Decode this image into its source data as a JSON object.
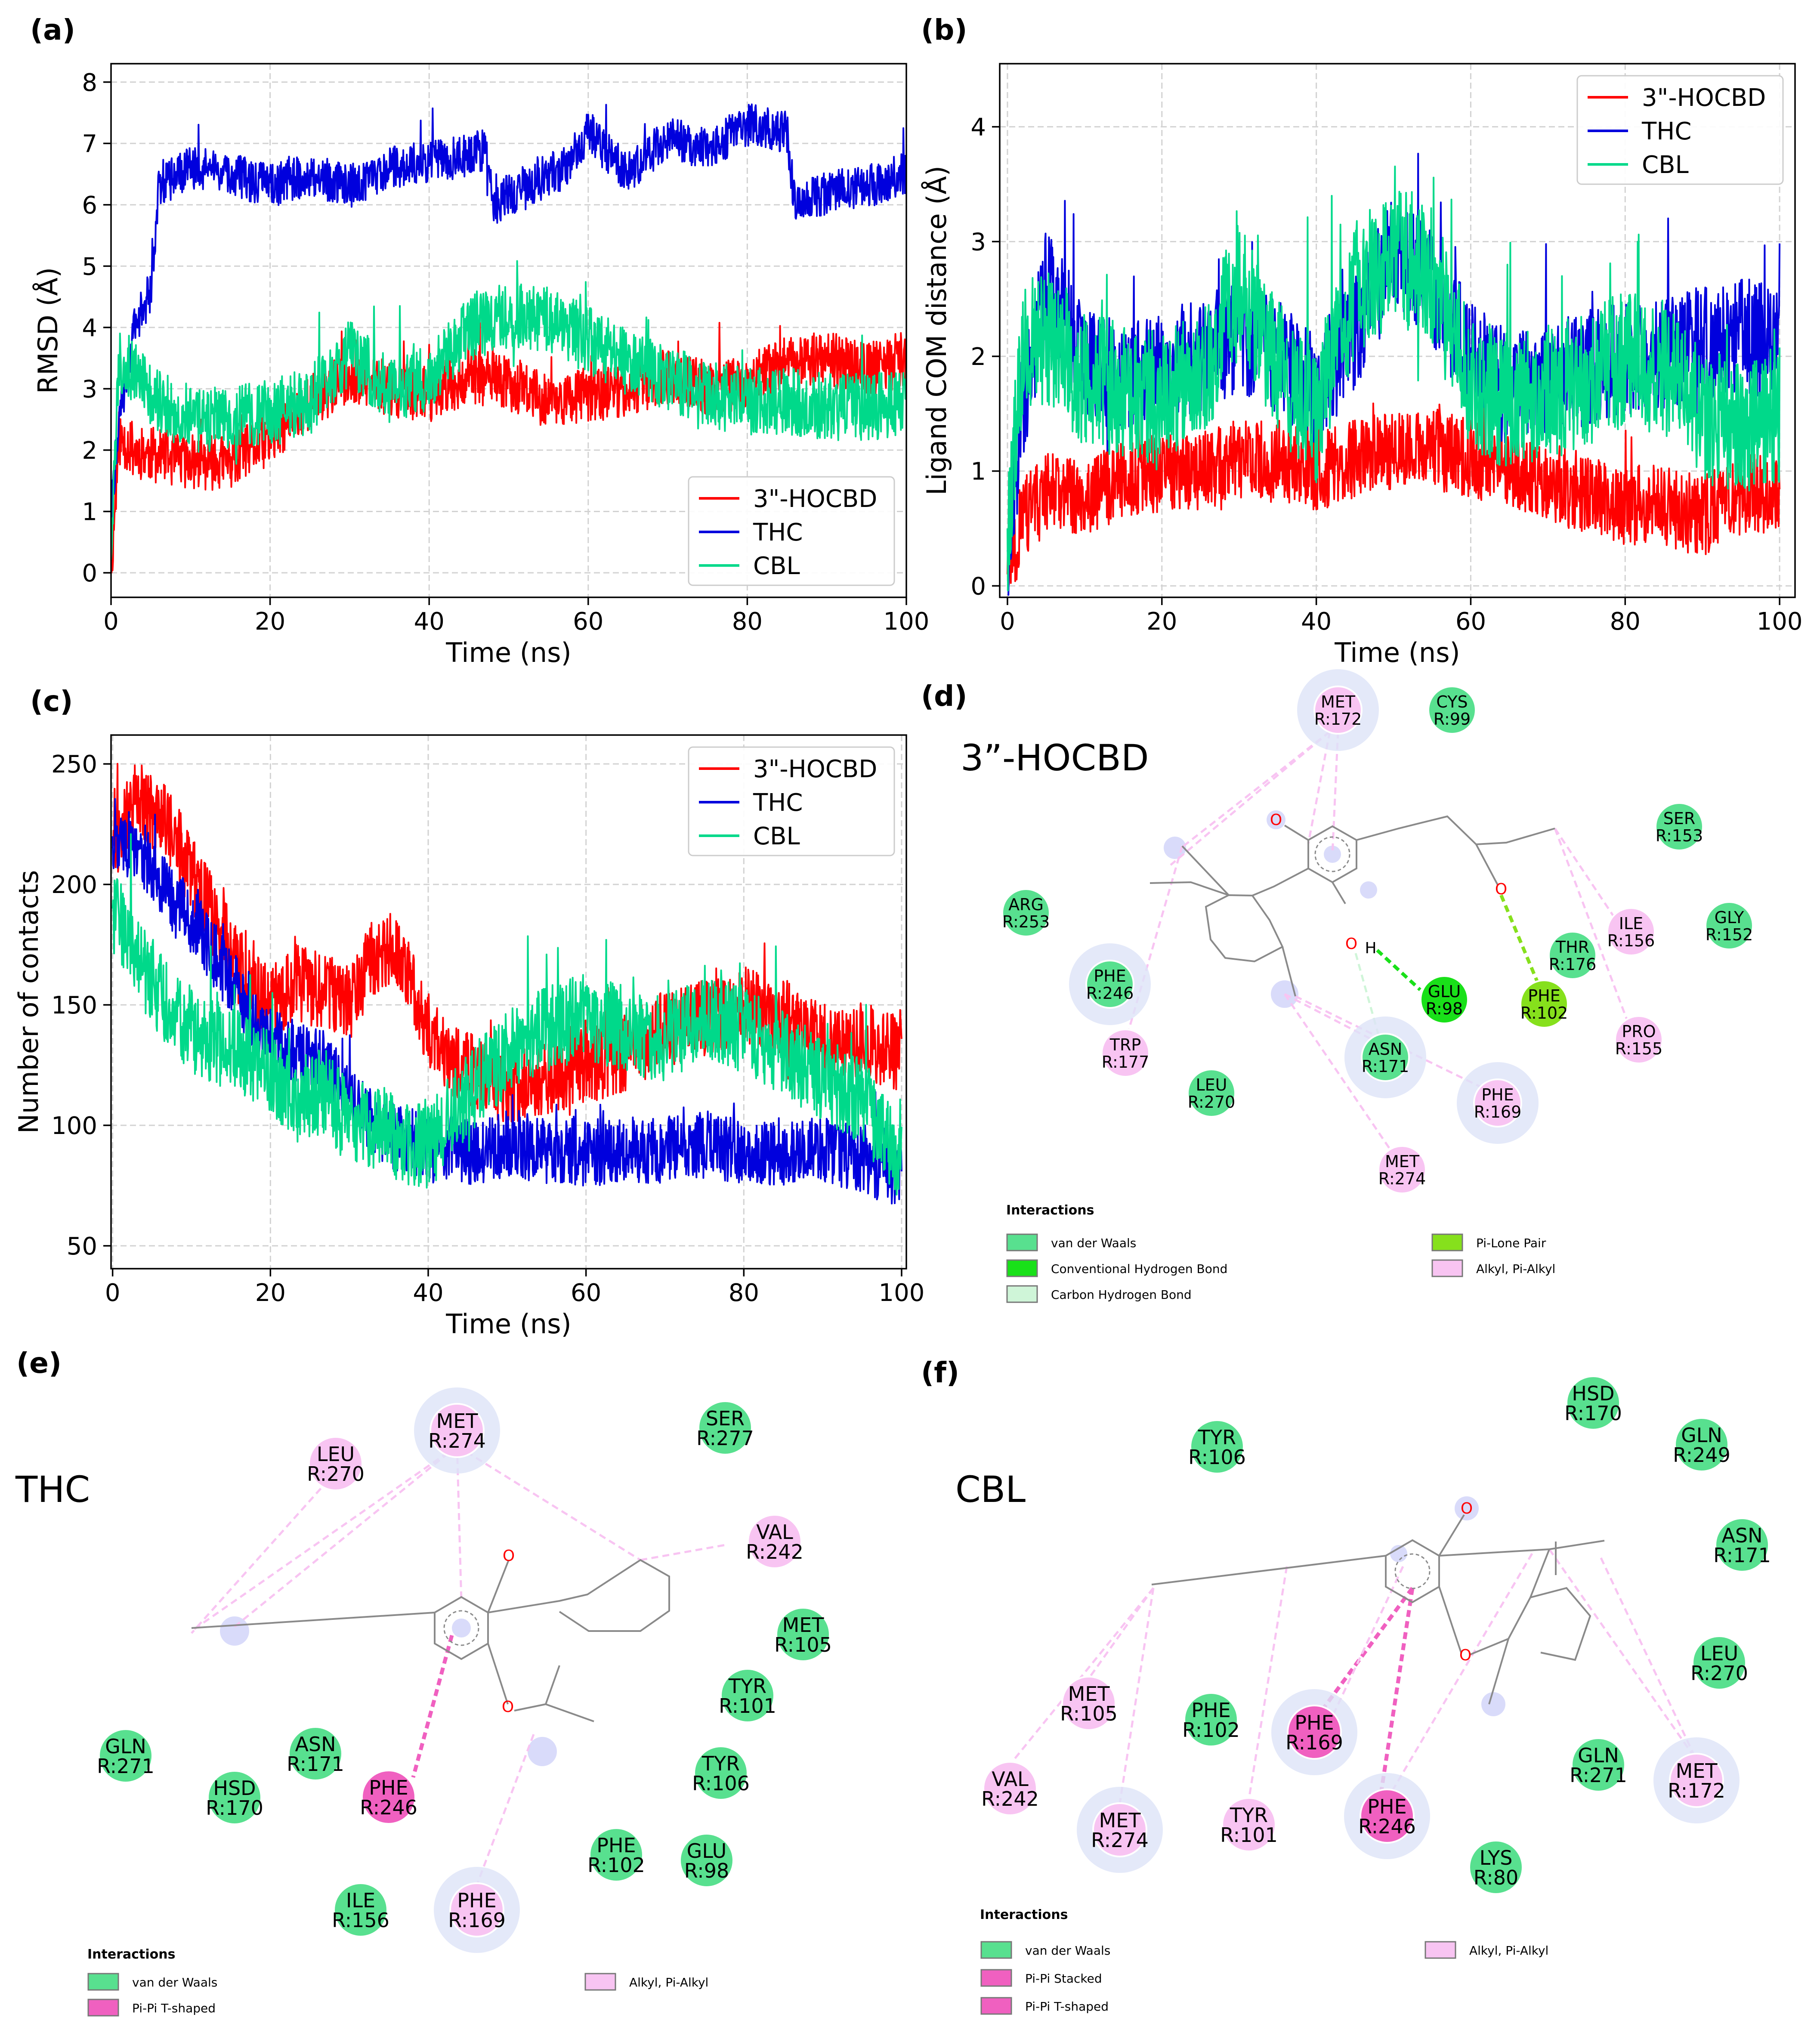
{
  "panels": {
    "a": {
      "label": "(a)"
    },
    "b": {
      "label": "(b)"
    },
    "c": {
      "label": "(c)"
    },
    "d": {
      "label": "(d)",
      "title": "3”-HOCBD"
    },
    "e": {
      "label": "(e)",
      "title": "THC"
    },
    "f": {
      "label": "(f)",
      "title": "CBL"
    }
  },
  "colors": {
    "hocbd": "#ff0000",
    "thc": "#0000dd",
    "cbl": "#00d98a",
    "vdw": "#58e08f",
    "conv_hbond": "#19e019",
    "carbon_hbond": "#cff5d8",
    "pi_lone": "#86e01c",
    "alkyl": "#f8c4f2",
    "pipi": "#f060c0"
  },
  "chart_data": [
    {
      "type": "line",
      "panel": "a",
      "xlabel": "Time (ns)",
      "ylabel": "RMSD (Å)",
      "xlim": [
        0,
        100
      ],
      "ylim": [
        -0.4,
        8.3
      ],
      "xticks": [
        0,
        20,
        40,
        60,
        80,
        100
      ],
      "yticks": [
        0,
        1,
        2,
        3,
        4,
        5,
        6,
        7,
        8
      ],
      "grid": true,
      "legend": "bottom-right",
      "series": [
        {
          "name": "3\"-HOCBD",
          "key": "hocbd",
          "noise": 0.45,
          "seed": 11,
          "x": [
            0,
            1,
            3,
            6,
            10,
            15,
            20,
            25,
            30,
            35,
            40,
            45,
            50,
            55,
            60,
            65,
            70,
            75,
            80,
            85,
            90,
            95,
            100
          ],
          "y": [
            0,
            2.2,
            2.0,
            1.9,
            1.8,
            1.8,
            2.2,
            2.8,
            3.2,
            3.0,
            2.9,
            3.2,
            3.1,
            2.8,
            2.9,
            3.0,
            3.2,
            3.0,
            3.1,
            3.4,
            3.5,
            3.3,
            3.5
          ]
        },
        {
          "name": "THC",
          "key": "thc",
          "noise": 0.35,
          "seed": 22,
          "x": [
            0,
            1,
            3,
            5,
            6,
            10,
            15,
            20,
            25,
            30,
            35,
            40,
            45,
            47,
            48,
            52,
            57,
            60,
            62,
            65,
            70,
            75,
            80,
            85,
            86,
            90,
            95,
            100
          ],
          "y": [
            1.0,
            2.5,
            4.0,
            4.6,
            6.3,
            6.6,
            6.5,
            6.3,
            6.5,
            6.3,
            6.6,
            6.7,
            6.8,
            6.9,
            6.0,
            6.3,
            6.6,
            7.2,
            6.9,
            6.5,
            7.1,
            6.9,
            7.3,
            7.2,
            6.0,
            6.2,
            6.3,
            6.5
          ]
        },
        {
          "name": "CBL",
          "key": "cbl",
          "noise": 0.55,
          "seed": 33,
          "x": [
            0,
            1,
            3,
            6,
            10,
            15,
            20,
            25,
            30,
            35,
            40,
            45,
            50,
            55,
            60,
            65,
            70,
            75,
            80,
            85,
            90,
            95,
            100
          ],
          "y": [
            0.2,
            3.5,
            3.3,
            2.8,
            2.5,
            2.5,
            2.6,
            2.8,
            3.6,
            3.0,
            3.2,
            4.0,
            4.2,
            4.1,
            3.8,
            3.4,
            3.2,
            2.9,
            2.8,
            2.8,
            2.7,
            2.7,
            2.8
          ]
        }
      ]
    },
    {
      "type": "line",
      "panel": "b",
      "xlabel": "Time (ns)",
      "ylabel": "Ligand COM distance (Å)",
      "xlim": [
        -1,
        102
      ],
      "ylim": [
        -0.1,
        4.55
      ],
      "xticks": [
        0,
        20,
        40,
        60,
        80,
        100
      ],
      "yticks": [
        0,
        1,
        2,
        3,
        4
      ],
      "grid": true,
      "legend": "top-right",
      "series": [
        {
          "name": "3\"-HOCBD",
          "key": "hocbd",
          "noise": 0.35,
          "seed": 44,
          "x": [
            0,
            2,
            5,
            10,
            15,
            20,
            25,
            30,
            35,
            40,
            45,
            50,
            55,
            60,
            65,
            70,
            75,
            80,
            85,
            90,
            95,
            100
          ],
          "y": [
            0.1,
            0.6,
            0.8,
            0.8,
            0.9,
            1.0,
            1.0,
            1.1,
            1.1,
            1.0,
            1.1,
            1.2,
            1.2,
            1.1,
            1.0,
            0.9,
            0.8,
            0.7,
            0.7,
            0.6,
            0.8,
            0.8
          ]
        },
        {
          "name": "THC",
          "key": "thc",
          "noise": 0.5,
          "seed": 55,
          "x": [
            0,
            2,
            5,
            10,
            15,
            20,
            25,
            30,
            35,
            40,
            45,
            50,
            55,
            60,
            65,
            70,
            75,
            80,
            85,
            90,
            95,
            100
          ],
          "y": [
            0.3,
            1.6,
            2.6,
            2.0,
            1.8,
            1.9,
            2.0,
            2.2,
            2.0,
            1.7,
            2.2,
            2.9,
            2.6,
            2.0,
            1.7,
            1.8,
            1.9,
            2.0,
            2.0,
            2.1,
            2.2,
            2.1
          ]
        },
        {
          "name": "CBL",
          "key": "cbl",
          "noise": 0.6,
          "seed": 66,
          "x": [
            0,
            2,
            5,
            10,
            15,
            20,
            25,
            30,
            35,
            40,
            45,
            50,
            55,
            60,
            65,
            70,
            75,
            80,
            85,
            90,
            95,
            100
          ],
          "y": [
            0.5,
            2.0,
            2.2,
            1.8,
            1.7,
            1.6,
            1.8,
            2.6,
            1.9,
            1.5,
            2.6,
            2.9,
            2.7,
            1.8,
            1.6,
            1.7,
            1.8,
            2.0,
            1.9,
            1.5,
            1.4,
            1.5
          ]
        }
      ]
    },
    {
      "type": "line",
      "panel": "c",
      "xlabel": "Time (ns)",
      "ylabel": "Number of contacts",
      "xlim": [
        -0.2,
        100.6
      ],
      "ylim": [
        40.5,
        262
      ],
      "xticks": [
        0,
        20,
        40,
        60,
        80,
        100
      ],
      "yticks": [
        50,
        100,
        150,
        200,
        250
      ],
      "grid": true,
      "legend": "top-right",
      "series": [
        {
          "name": "3\"-HOCBD",
          "key": "hocbd",
          "noise": 16,
          "seed": 77,
          "x": [
            0,
            3,
            7,
            10,
            13,
            17,
            20,
            23,
            27,
            30,
            33,
            36,
            40,
            43,
            47,
            50,
            55,
            60,
            65,
            70,
            75,
            80,
            85,
            90,
            95,
            100
          ],
          "y": [
            215,
            235,
            225,
            205,
            185,
            160,
            150,
            160,
            155,
            150,
            170,
            175,
            140,
            125,
            120,
            115,
            120,
            125,
            130,
            140,
            145,
            150,
            145,
            135,
            135,
            130
          ]
        },
        {
          "name": "THC",
          "key": "thc",
          "noise": 14,
          "seed": 88,
          "x": [
            0,
            3,
            7,
            10,
            13,
            17,
            20,
            23,
            27,
            30,
            33,
            36,
            40,
            43,
            47,
            50,
            55,
            60,
            65,
            70,
            75,
            80,
            85,
            90,
            95,
            100
          ],
          "y": [
            220,
            215,
            195,
            185,
            170,
            150,
            135,
            130,
            125,
            110,
            100,
            95,
            90,
            90,
            88,
            92,
            90,
            88,
            90,
            90,
            92,
            90,
            88,
            90,
            85,
            80
          ]
        },
        {
          "name": "CBL",
          "key": "cbl",
          "noise": 18,
          "seed": 99,
          "x": [
            0,
            3,
            7,
            10,
            13,
            17,
            20,
            23,
            27,
            30,
            33,
            36,
            40,
            43,
            47,
            50,
            55,
            60,
            65,
            70,
            75,
            80,
            85,
            90,
            95,
            100
          ],
          "y": [
            190,
            170,
            150,
            140,
            135,
            130,
            120,
            110,
            115,
            100,
            100,
            95,
            90,
            105,
            120,
            130,
            140,
            145,
            140,
            135,
            145,
            140,
            130,
            120,
            110,
            85
          ]
        }
      ]
    }
  ],
  "interactions": {
    "d": {
      "header": "Interactions",
      "legend": [
        {
          "label": "van der Waals",
          "key": "vdw"
        },
        {
          "label": "Conventional Hydrogen Bond",
          "key": "conv_hbond"
        },
        {
          "label": "Carbon Hydrogen Bond",
          "key": "carbon_hbond"
        },
        {
          "label": "Pi-Lone Pair",
          "key": "pi_lone"
        },
        {
          "label": "Alkyl, Pi-Alkyl",
          "key": "alkyl"
        }
      ],
      "residues": [
        {
          "name": "MET",
          "id": "R:172",
          "key": "alkyl",
          "halo": true
        },
        {
          "name": "CYS",
          "id": "R:99",
          "key": "vdw"
        },
        {
          "name": "SER",
          "id": "R:153",
          "key": "vdw"
        },
        {
          "name": "ARG",
          "id": "R:253",
          "key": "vdw"
        },
        {
          "name": "GLY",
          "id": "R:152",
          "key": "vdw"
        },
        {
          "name": "ILE",
          "id": "R:156",
          "key": "alkyl"
        },
        {
          "name": "THR",
          "id": "R:176",
          "key": "vdw"
        },
        {
          "name": "PHE",
          "id": "R:246",
          "key": "vdw",
          "halo": true
        },
        {
          "name": "GLU",
          "id": "R:98",
          "key": "conv_hbond"
        },
        {
          "name": "PHE",
          "id": "R:102",
          "key": "pi_lone"
        },
        {
          "name": "TRP",
          "id": "R:177",
          "key": "alkyl"
        },
        {
          "name": "ASN",
          "id": "R:171",
          "key": "vdw",
          "halo": true
        },
        {
          "name": "PRO",
          "id": "R:155",
          "key": "alkyl"
        },
        {
          "name": "LEU",
          "id": "R:270",
          "key": "vdw"
        },
        {
          "name": "PHE",
          "id": "R:169",
          "key": "alkyl",
          "halo": true
        },
        {
          "name": "MET",
          "id": "R:274",
          "key": "alkyl"
        }
      ],
      "atoms": [
        {
          "text": "O"
        },
        {
          "text": "O"
        },
        {
          "text": "H"
        },
        {
          "text": "O"
        }
      ]
    },
    "e": {
      "header": "Interactions",
      "legend": [
        {
          "label": "van der Waals",
          "key": "vdw"
        },
        {
          "label": "Pi-Pi T-shaped",
          "key": "pipi"
        },
        {
          "label": "Alkyl, Pi-Alkyl",
          "key": "alkyl"
        }
      ],
      "residues": [
        {
          "name": "MET",
          "id": "R:274",
          "key": "alkyl",
          "halo": true
        },
        {
          "name": "SER",
          "id": "R:277",
          "key": "vdw"
        },
        {
          "name": "LEU",
          "id": "R:270",
          "key": "alkyl"
        },
        {
          "name": "VAL",
          "id": "R:242",
          "key": "alkyl"
        },
        {
          "name": "MET",
          "id": "R:105",
          "key": "vdw"
        },
        {
          "name": "TYR",
          "id": "R:101",
          "key": "vdw"
        },
        {
          "name": "GLN",
          "id": "R:271",
          "key": "vdw"
        },
        {
          "name": "ASN",
          "id": "R:171",
          "key": "vdw"
        },
        {
          "name": "PHE",
          "id": "R:246",
          "key": "pipi"
        },
        {
          "name": "TYR",
          "id": "R:106",
          "key": "vdw"
        },
        {
          "name": "HSD",
          "id": "R:170",
          "key": "vdw"
        },
        {
          "name": "PHE",
          "id": "R:102",
          "key": "vdw"
        },
        {
          "name": "GLU",
          "id": "R:98",
          "key": "vdw"
        },
        {
          "name": "ILE",
          "id": "R:156",
          "key": "vdw"
        },
        {
          "name": "PHE",
          "id": "R:169",
          "key": "alkyl",
          "halo": true
        }
      ],
      "atoms": [
        {
          "text": "O"
        },
        {
          "text": "O"
        }
      ]
    },
    "f": {
      "header": "Interactions",
      "legend": [
        {
          "label": "van der Waals",
          "key": "vdw"
        },
        {
          "label": "Pi-Pi Stacked",
          "key": "pipi"
        },
        {
          "label": "Pi-Pi T-shaped",
          "key": "pipi"
        },
        {
          "label": "Alkyl, Pi-Alkyl",
          "key": "alkyl"
        }
      ],
      "residues": [
        {
          "name": "HSD",
          "id": "R:170",
          "key": "vdw"
        },
        {
          "name": "TYR",
          "id": "R:106",
          "key": "vdw"
        },
        {
          "name": "GLN",
          "id": "R:249",
          "key": "vdw"
        },
        {
          "name": "ASN",
          "id": "R:171",
          "key": "vdw"
        },
        {
          "name": "LEU",
          "id": "R:270",
          "key": "vdw"
        },
        {
          "name": "MET",
          "id": "R:105",
          "key": "alkyl"
        },
        {
          "name": "PHE",
          "id": "R:102",
          "key": "vdw"
        },
        {
          "name": "PHE",
          "id": "R:169",
          "key": "pipi",
          "halo": true
        },
        {
          "name": "VAL",
          "id": "R:242",
          "key": "alkyl"
        },
        {
          "name": "MET",
          "id": "R:172",
          "key": "alkyl",
          "halo": true
        },
        {
          "name": "GLN",
          "id": "R:271",
          "key": "vdw"
        },
        {
          "name": "MET",
          "id": "R:274",
          "key": "alkyl",
          "halo": true
        },
        {
          "name": "TYR",
          "id": "R:101",
          "key": "alkyl"
        },
        {
          "name": "PHE",
          "id": "R:246",
          "key": "pipi",
          "halo": true
        },
        {
          "name": "LYS",
          "id": "R:80",
          "key": "vdw"
        }
      ],
      "atoms": [
        {
          "text": "O"
        },
        {
          "text": "O"
        }
      ]
    }
  }
}
